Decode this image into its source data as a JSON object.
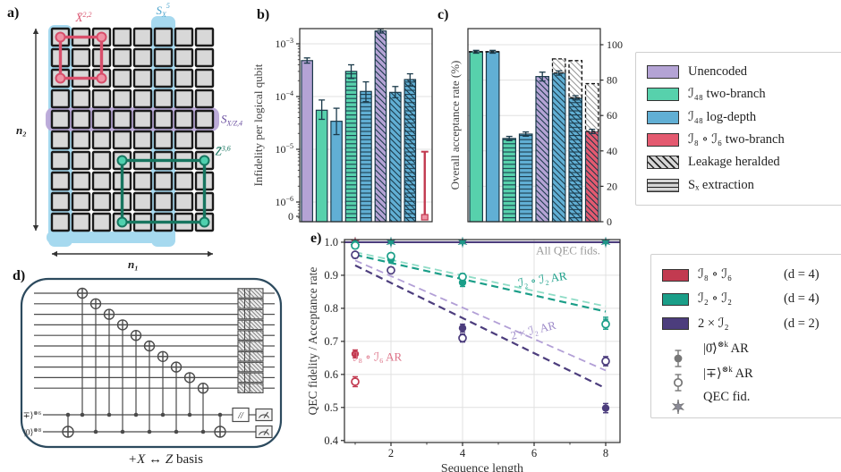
{
  "figure": {
    "panel_labels": {
      "a": "a)",
      "b": "b)",
      "c": "c)",
      "d": "d)",
      "e": "e)"
    }
  },
  "colors": {
    "purple": "#b4a3d5",
    "green": "#57d1ac",
    "blue": "#61afd4",
    "red": "#e45a70",
    "teal_dark": "#1a9e88",
    "mint": "#8fdcc6",
    "purple_dark": "#4c3d7d",
    "lavender": "#b29fd6",
    "lavender_text": "#9e8bc9",
    "red_dark": "#c23a50",
    "red_light": "#dd7388",
    "bar_edge": "#1b3a4a",
    "axis": "#2a2a2a",
    "grid": "#e0e0e0",
    "annotation_gray": "#9a9a9a",
    "band_blue": "#a6d9ef",
    "band_purple": "#b9a8d8",
    "loop_red": "#d84f6b",
    "loop_red_fill": "#ef93a5",
    "loop_green": "#17755f",
    "loop_green_fill": "#4fd0ae",
    "square_fill": "#d8d8d8",
    "square_edge": "#1a1a1a",
    "circuit": "#4a4a4a",
    "box_edge": "#2c4a5e",
    "swatch_gray": "#d6d6d6",
    "star_gray": "#8a8a96"
  },
  "panel_a": {
    "cols": 8,
    "rows": 10,
    "blue_cols": [
      0,
      5
    ],
    "purple_row": 4,
    "red_loop": {
      "c1": 0,
      "r1": 0,
      "c2": 2,
      "r2": 2
    },
    "green_loop": {
      "c1": 3,
      "r1": 6,
      "c2": 7,
      "r2": 9
    },
    "labels": {
      "x_op": {
        "base": "X̄",
        "sup": "2,2"
      },
      "sx": {
        "base": "S",
        "sub": "X",
        "sup": "5"
      },
      "sxz": {
        "base": "S",
        "sub": "X/Z,4"
      },
      "z_op": {
        "base": "Z̄",
        "sup": "3,6"
      },
      "n1": "n₁",
      "n2": "n₂"
    }
  },
  "chart_data": [
    {
      "type": "bar",
      "panel": "b",
      "ylabel": "Infidelity per logical qubit",
      "yscale": "log-with-zero",
      "ytick_exponents": [
        "−3",
        "−4",
        "−5",
        "−6"
      ],
      "ytick_zero": "0",
      "bars": [
        {
          "fill": "purple",
          "hatch": "none",
          "value": 0.00048,
          "lo": 0.00043,
          "hi": 0.00054
        },
        {
          "fill": "green",
          "hatch": "none",
          "value": 5.5e-05,
          "lo": 3.7e-05,
          "hi": 8.6e-05
        },
        {
          "fill": "blue",
          "hatch": "none",
          "value": 3.4e-05,
          "lo": 1.9e-05,
          "hi": 6e-05
        },
        {
          "fill": "green",
          "hatch": "horiz",
          "value": 0.0003,
          "lo": 0.00022,
          "hi": 0.0004
        },
        {
          "fill": "blue",
          "hatch": "horiz",
          "value": 0.000125,
          "lo": 8e-05,
          "hi": 0.00019
        },
        {
          "fill": "purple",
          "hatch": "diag",
          "value": 0.00175,
          "lo": 0.0016,
          "hi": 0.0019
        },
        {
          "fill": "blue",
          "hatch": "diag",
          "value": 0.00012,
          "lo": 9.5e-05,
          "hi": 0.000155
        },
        {
          "fill": "blue",
          "hatch": "diag+horiz",
          "value": 0.00021,
          "lo": 0.00016,
          "hi": 0.00027
        },
        {
          "fill": "red",
          "hatch": "none",
          "value": 0,
          "lo": 0,
          "hi": 9e-06
        }
      ]
    },
    {
      "type": "bar",
      "panel": "c",
      "ylabel": "Overall acceptance rate (%)",
      "yticks": [
        0,
        20,
        40,
        60,
        80,
        100
      ],
      "bars": [
        {
          "fill": "green",
          "hatch": "none",
          "value": 96,
          "err": 0.8,
          "dashed_cap": true
        },
        {
          "fill": "blue",
          "hatch": "none",
          "value": 96,
          "err": 0.8,
          "dashed_cap": true
        },
        {
          "fill": "green",
          "hatch": "horiz",
          "value": 47,
          "err": 1.2
        },
        {
          "fill": "blue",
          "hatch": "horiz",
          "value": 49.5,
          "err": 1.2
        },
        {
          "fill": "purple",
          "hatch": "diag",
          "value": 82,
          "err": 2.5
        },
        {
          "fill": "blue",
          "hatch": "diag",
          "value": 84,
          "err": 1.2,
          "heralded": 92
        },
        {
          "fill": "blue",
          "hatch": "diag+horiz",
          "value": 70,
          "err": 1.2,
          "heralded": 91
        },
        {
          "fill": "red",
          "hatch": "diag",
          "value": 51,
          "err": 1.2,
          "heralded": 78
        }
      ]
    },
    {
      "type": "scatter",
      "panel": "e",
      "xlabel": "Sequence length",
      "ylabel": "QEC fidelity / Acceptance rate",
      "xlim": [
        0.7,
        8.4
      ],
      "ylim": [
        0.394,
        1.008
      ],
      "xticks": [
        2,
        4,
        6,
        8
      ],
      "xminor": [
        1,
        3,
        5,
        7
      ],
      "yticks": [
        "0.4",
        "0.5",
        "0.6",
        "0.7",
        "0.8",
        "0.9",
        "1.0"
      ],
      "qec_line": {
        "color_key": "purple_dark",
        "y": 1.0
      },
      "stars": [
        {
          "color_key": "purple_dark",
          "x": [
            1,
            2,
            4,
            8
          ]
        },
        {
          "color_key": "teal_dark",
          "x": [
            1,
            2,
            4,
            8
          ]
        },
        {
          "color_key": "red_dark",
          "x": [
            1
          ]
        }
      ],
      "points": [
        {
          "name": "I2oI2-zero-AR",
          "color_key": "teal_dark",
          "marker": "filled",
          "x": [
            1,
            2,
            4,
            8
          ],
          "y": [
            0.995,
            0.948,
            0.878,
            0.755
          ],
          "err": [
            0.006,
            0.01,
            0.012,
            0.018
          ]
        },
        {
          "name": "I2oI2-plus-AR",
          "color_key": "teal_dark",
          "marker": "open",
          "x": [
            1,
            2,
            4,
            8
          ],
          "y": [
            0.99,
            0.958,
            0.895,
            0.752
          ],
          "err": [
            0.006,
            0.008,
            0.01,
            0.015
          ]
        },
        {
          "name": "2xI2-zero-AR",
          "color_key": "purple_dark",
          "marker": "filled",
          "x": [
            1,
            2,
            4,
            8
          ],
          "y": [
            0.96,
            0.916,
            0.74,
            0.498
          ],
          "err": [
            0.008,
            0.008,
            0.012,
            0.014
          ]
        },
        {
          "name": "2xI2-plus-AR",
          "color_key": "purple_dark",
          "marker": "open",
          "x": [
            1,
            2,
            4,
            8
          ],
          "y": [
            0.962,
            0.915,
            0.71,
            0.64
          ],
          "err": [
            0.008,
            0.008,
            0.012,
            0.014
          ]
        },
        {
          "name": "I8oI6-zero-AR",
          "color_key": "red_dark",
          "marker": "filled",
          "x": [
            1
          ],
          "y": [
            0.662
          ],
          "err": [
            0.012
          ]
        },
        {
          "name": "I8oI6-plus-AR",
          "color_key": "red_dark",
          "marker": "open",
          "x": [
            1
          ],
          "y": [
            0.578
          ],
          "err": [
            0.015
          ]
        }
      ],
      "trends": [
        {
          "color_key": "mint",
          "y1": 0.97,
          "y2": 0.806
        },
        {
          "color_key": "teal_dark",
          "y1": 0.962,
          "y2": 0.79
        },
        {
          "color_key": "lavender",
          "y1": 0.945,
          "y2": 0.612
        },
        {
          "color_key": "purple_dark",
          "y1": 0.93,
          "y2": 0.558
        }
      ],
      "annotations": [
        {
          "text": "All QEC fids.",
          "color_key": "annotation_gray",
          "x": 6.95,
          "y": 0.963,
          "rotate": 0
        },
        {
          "text": "ℐ₂ ∘ ℐ₂ AR",
          "color_key": "teal_dark",
          "x": 6.25,
          "y": 0.876,
          "rotate": -9
        },
        {
          "text": "2 × ℐ₂ AR",
          "color_key": "lavender_text",
          "x": 6.0,
          "y": 0.722,
          "rotate": -14
        },
        {
          "text": "ℐ₈ ∘ ℐ₆ AR",
          "color_key": "red_light",
          "x": 1.62,
          "y": 0.641,
          "rotate": 0
        }
      ]
    }
  ],
  "legend_main": {
    "items": [
      {
        "swatch": "purple",
        "label": "Unencoded"
      },
      {
        "swatch": "green",
        "label": "ℐ₄₈ two-branch"
      },
      {
        "swatch": "blue",
        "label": "ℐ₄₈ log-depth"
      },
      {
        "swatch": "red",
        "label": "ℐ₈ ∘ ℐ₆ two-branch"
      },
      {
        "swatch": "hatch_diag",
        "label": "Leakage heralded"
      },
      {
        "swatch": "hatch_horiz",
        "label": "Sₓ extraction"
      }
    ]
  },
  "legend_e": {
    "items": [
      {
        "type": "swatch",
        "color_key": "red_dark",
        "label": "ℐ₈ ∘ ℐ₆",
        "dim": "(d = 4)"
      },
      {
        "type": "swatch",
        "color_key": "teal_dark",
        "label": "ℐ₂ ∘ ℐ₂",
        "dim": "(d = 4)"
      },
      {
        "type": "swatch",
        "color_key": "purple_dark",
        "label": "2 × ℐ₂",
        "dim": "(d = 2)"
      },
      {
        "type": "marker-filled",
        "ket": "|0̄⟩",
        "sup": "⊗k",
        "suffix": " AR"
      },
      {
        "type": "marker-open",
        "ket": "|∓⟩",
        "sup": "⊗k",
        "suffix": " AR"
      },
      {
        "type": "marker-star",
        "label": "QEC fid."
      }
    ]
  },
  "panel_d": {
    "caption_math": "+X ↔ Z",
    "caption_text": " basis",
    "data_wires": 10,
    "ancillas": [
      {
        "ket": "|∓⟩",
        "sup": "⊗6"
      },
      {
        "ket": "|0⟩",
        "sup": "⊗8"
      }
    ],
    "slash_label": "//"
  }
}
